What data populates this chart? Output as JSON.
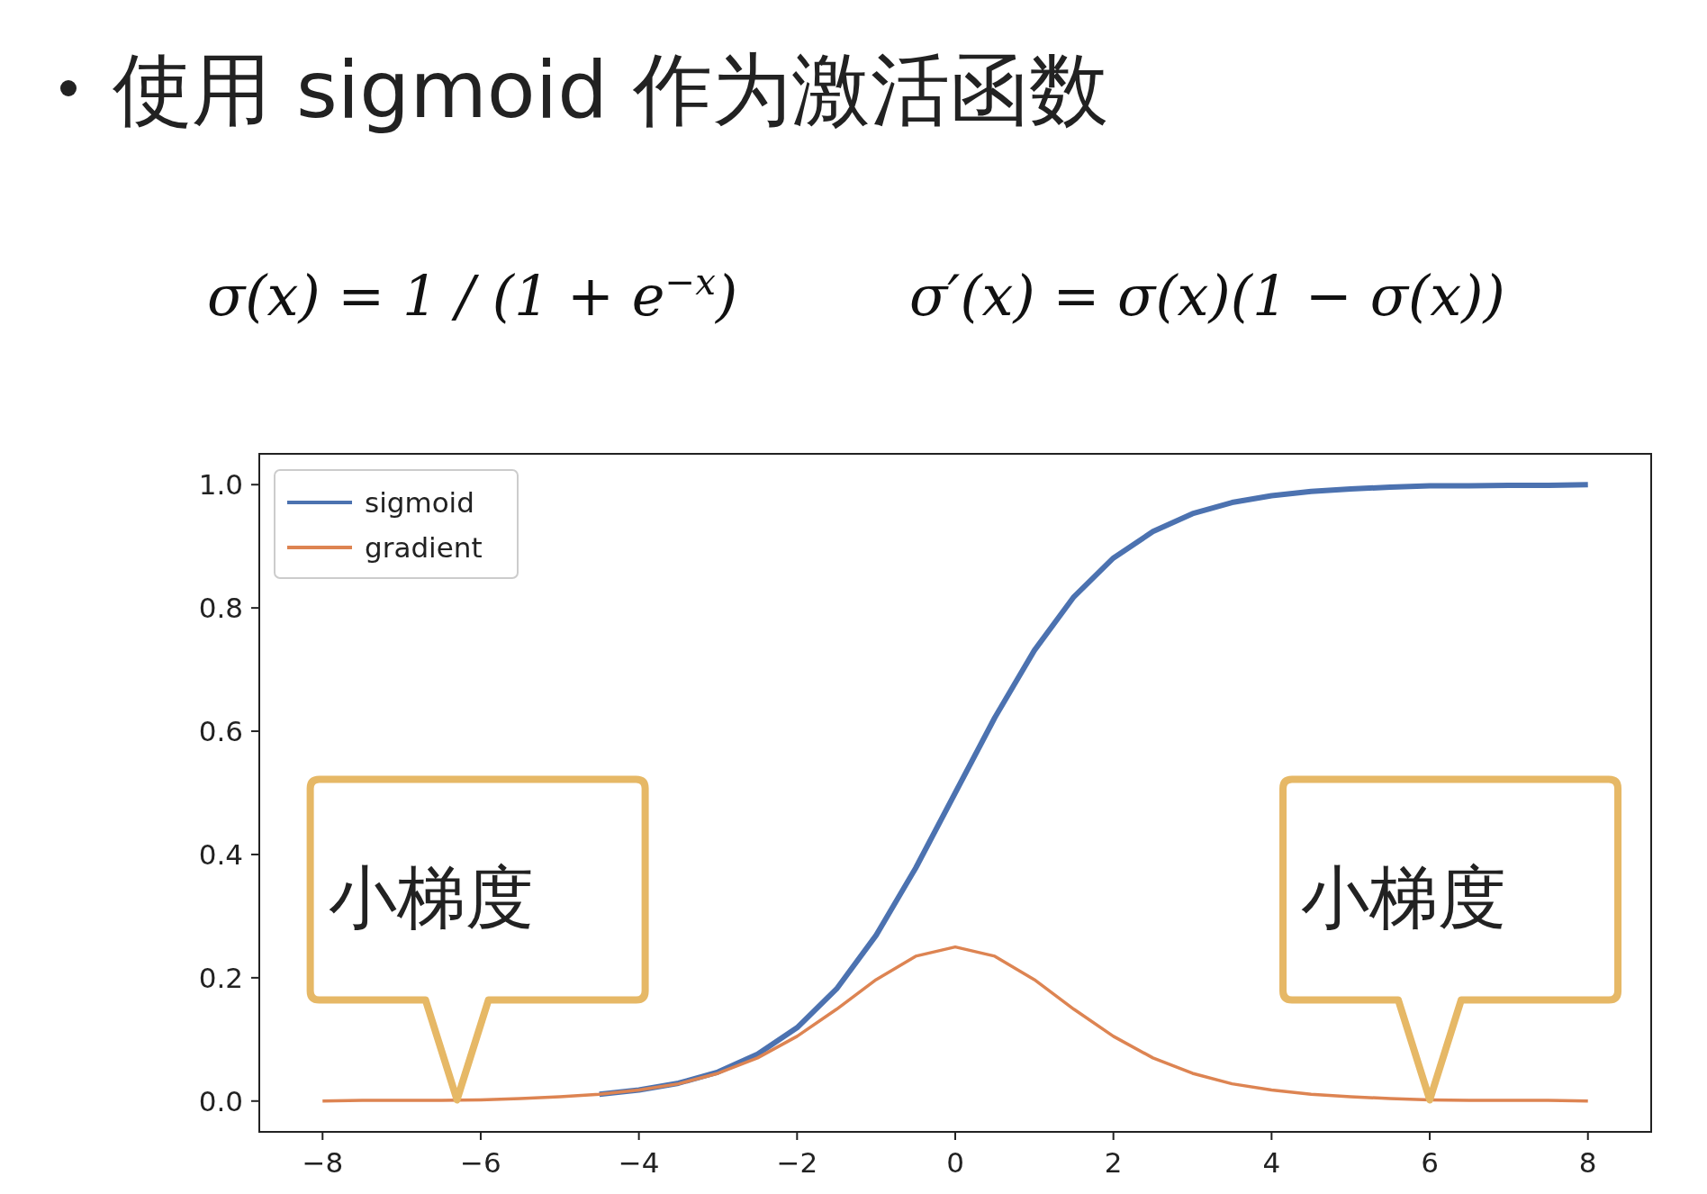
{
  "chart_data": {
    "type": "line",
    "title": "使用 sigmoid 作为激活函数",
    "annotations": [
      "σ(x) = 1 / (1 + e$^{−x}$)",
      "σ′(x) = σ(x)(1 − σ(x))",
      {
        "text": "小梯度",
        "x": -6.3,
        "y": 0.002
      },
      {
        "text": "小梯度",
        "x": 6.0,
        "y": 0.002
      }
    ],
    "x": [
      -8,
      -7.5,
      -7,
      -6.5,
      -6,
      -5.5,
      -5,
      -4.5,
      -4,
      -3.5,
      -3,
      -2.5,
      -2,
      -1.5,
      -1,
      -0.5,
      0,
      0.5,
      1,
      1.5,
      2,
      2.5,
      3,
      3.5,
      4,
      4.5,
      5,
      5.5,
      6,
      6.5,
      7,
      7.5,
      8
    ],
    "series": [
      {
        "name": "sigmoid",
        "color": "#4c72b0",
        "values": [
          null,
          null,
          null,
          null,
          null,
          null,
          null,
          0.011,
          0.018,
          0.029,
          0.047,
          0.076,
          0.119,
          0.182,
          0.269,
          0.378,
          0.5,
          0.622,
          0.731,
          0.818,
          0.881,
          0.924,
          0.953,
          0.971,
          0.982,
          0.989,
          0.993,
          0.996,
          0.998,
          0.998,
          0.999,
          0.999,
          1.0
        ]
      },
      {
        "name": "gradient",
        "color": "#dd8452",
        "values": [
          0.0,
          0.001,
          0.001,
          0.001,
          0.002,
          0.004,
          0.007,
          0.011,
          0.018,
          0.028,
          0.045,
          0.07,
          0.105,
          0.149,
          0.197,
          0.235,
          0.25,
          0.235,
          0.197,
          0.149,
          0.105,
          0.07,
          0.045,
          0.028,
          0.018,
          0.011,
          0.007,
          0.004,
          0.002,
          0.001,
          0.001,
          0.001,
          0.0
        ]
      }
    ],
    "xlim": [
      -8.8,
      8.8
    ],
    "ylim": [
      -0.05,
      1.05
    ],
    "xticks": [
      {
        "value": -8,
        "label": "−8"
      },
      {
        "value": -6,
        "label": "−6"
      },
      {
        "value": -4,
        "label": "−4"
      },
      {
        "value": -2,
        "label": "−2"
      },
      0,
      2,
      4,
      6,
      8
    ],
    "yticks": [
      {
        "value": 0,
        "label": "0.0"
      },
      {
        "value": 0.2,
        "label": "0.2"
      },
      {
        "value": 0.4,
        "label": "0.4"
      },
      {
        "value": 0.6,
        "label": "0.6"
      },
      {
        "value": 0.8,
        "label": "0.8"
      },
      {
        "value": 1.0,
        "label": "1.0"
      }
    ],
    "legend": "top left",
    "grid": false,
    "marker": "none",
    "line_style": "solid"
  }
}
